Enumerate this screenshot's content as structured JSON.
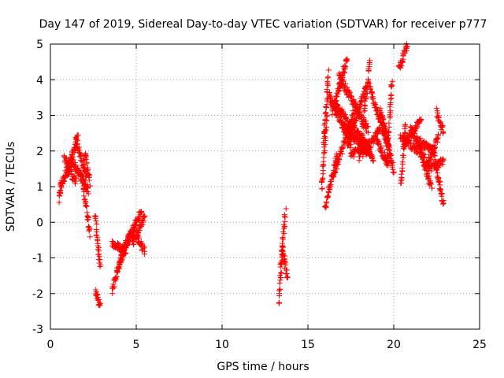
{
  "chart_data": {
    "type": "scatter",
    "title": "Day 147 of 2019, Sidereal Day-to-day VTEC variation (SDTVAR) for receiver p777",
    "xlabel": "GPS time / hours",
    "ylabel": "SDTVAR / TECUs",
    "xlim": [
      0,
      25
    ],
    "ylim": [
      -3,
      5
    ],
    "xticks": [
      0,
      5,
      10,
      15,
      20,
      25
    ],
    "yticks": [
      -3,
      -2,
      -1,
      0,
      1,
      2,
      3,
      4,
      5
    ],
    "grid": true,
    "marker": "+",
    "color": "#ff0000",
    "series": [
      {
        "name": "SDTVAR",
        "segments": [
          {
            "t0": 0.5,
            "t1": 0.65,
            "y0": 0.6,
            "y1": 1.2
          },
          {
            "t0": 0.6,
            "t1": 1.3,
            "y0": 1.0,
            "y1": 1.9
          },
          {
            "t0": 0.8,
            "t1": 1.5,
            "y0": 1.8,
            "y1": 1.1
          },
          {
            "t0": 1.0,
            "t1": 1.6,
            "y0": 1.3,
            "y1": 2.4
          },
          {
            "t0": 1.3,
            "t1": 2.2,
            "y0": 1.7,
            "y1": 0.9
          },
          {
            "t0": 1.5,
            "t1": 2.1,
            "y0": 2.3,
            "y1": 1.3
          },
          {
            "t0": 1.8,
            "t1": 2.3,
            "y0": 1.4,
            "y1": -0.3
          },
          {
            "t0": 2.0,
            "t1": 2.3,
            "y0": 2.0,
            "y1": 1.1
          },
          {
            "t0": 2.6,
            "t1": 2.9,
            "y0": 0.2,
            "y1": -1.3
          },
          {
            "t0": 2.6,
            "t1": 2.9,
            "y0": -1.9,
            "y1": -2.4
          },
          {
            "t0": 3.6,
            "t1": 4.2,
            "y0": -1.9,
            "y1": -0.8
          },
          {
            "t0": 3.6,
            "t1": 4.4,
            "y0": -0.6,
            "y1": -0.8
          },
          {
            "t0": 4.0,
            "t1": 4.6,
            "y0": -1.2,
            "y1": -0.4
          },
          {
            "t0": 4.2,
            "t1": 5.0,
            "y0": -0.8,
            "y1": -0.1
          },
          {
            "t0": 4.4,
            "t1": 5.3,
            "y0": -0.6,
            "y1": 0.3
          },
          {
            "t0": 4.8,
            "t1": 5.5,
            "y0": -0.6,
            "y1": 0.2
          },
          {
            "t0": 5.0,
            "t1": 5.5,
            "y0": -0.4,
            "y1": -0.8
          },
          {
            "t0": 13.3,
            "t1": 13.5,
            "y0": -2.3,
            "y1": -0.8
          },
          {
            "t0": 13.4,
            "t1": 13.7,
            "y0": -1.3,
            "y1": 0.3
          },
          {
            "t0": 13.5,
            "t1": 13.8,
            "y0": -0.6,
            "y1": -1.6
          },
          {
            "t0": 15.8,
            "t1": 16.1,
            "y0": 0.9,
            "y1": 3.1
          },
          {
            "t0": 15.9,
            "t1": 16.2,
            "y0": 2.2,
            "y1": 4.2
          },
          {
            "t0": 16.0,
            "t1": 16.7,
            "y0": 0.4,
            "y1": 1.9
          },
          {
            "t0": 16.2,
            "t1": 17.5,
            "y0": 3.6,
            "y1": 2.2
          },
          {
            "t0": 16.4,
            "t1": 17.3,
            "y0": 3.1,
            "y1": 4.6
          },
          {
            "t0": 16.5,
            "t1": 17.8,
            "y0": 1.3,
            "y1": 3.3
          },
          {
            "t0": 16.6,
            "t1": 18.5,
            "y0": 3.3,
            "y1": 2.1
          },
          {
            "t0": 16.8,
            "t1": 18.5,
            "y0": 4.1,
            "y1": 2.6
          },
          {
            "t0": 17.0,
            "t1": 18.8,
            "y0": 2.7,
            "y1": 1.8
          },
          {
            "t0": 17.3,
            "t1": 18.4,
            "y0": 2.2,
            "y1": 3.8
          },
          {
            "t0": 17.5,
            "t1": 18.6,
            "y0": 1.9,
            "y1": 2.2
          },
          {
            "t0": 18.0,
            "t1": 18.6,
            "y0": 1.7,
            "y1": 4.5
          },
          {
            "t0": 18.2,
            "t1": 19.2,
            "y0": 1.9,
            "y1": 2.6
          },
          {
            "t0": 18.6,
            "t1": 19.6,
            "y0": 3.8,
            "y1": 2.2
          },
          {
            "t0": 19.0,
            "t1": 19.7,
            "y0": 2.3,
            "y1": 1.6
          },
          {
            "t0": 19.2,
            "t1": 19.8,
            "y0": 3.2,
            "y1": 1.9
          },
          {
            "t0": 19.4,
            "t1": 20.0,
            "y0": 2.8,
            "y1": 1.4
          },
          {
            "t0": 19.6,
            "t1": 19.9,
            "y0": 1.6,
            "y1": 4.0
          },
          {
            "t0": 20.3,
            "t1": 20.8,
            "y0": 4.3,
            "y1": 5.0
          },
          {
            "t0": 20.4,
            "t1": 20.7,
            "y0": 1.0,
            "y1": 2.8
          },
          {
            "t0": 20.4,
            "t1": 21.4,
            "y0": 2.4,
            "y1": 2.0
          },
          {
            "t0": 20.6,
            "t1": 21.6,
            "y0": 2.2,
            "y1": 2.9
          },
          {
            "t0": 21.0,
            "t1": 21.8,
            "y0": 2.6,
            "y1": 1.8
          },
          {
            "t0": 21.4,
            "t1": 22.4,
            "y0": 2.3,
            "y1": 2.0
          },
          {
            "t0": 21.6,
            "t1": 22.2,
            "y0": 1.9,
            "y1": 1.0
          },
          {
            "t0": 21.9,
            "t1": 22.6,
            "y0": 1.6,
            "y1": 2.4
          },
          {
            "t0": 22.0,
            "t1": 22.9,
            "y0": 1.5,
            "y1": 1.7
          },
          {
            "t0": 22.3,
            "t1": 22.9,
            "y0": 2.0,
            "y1": 0.5
          },
          {
            "t0": 22.5,
            "t1": 22.9,
            "y0": 3.1,
            "y1": 2.5
          }
        ]
      }
    ]
  }
}
